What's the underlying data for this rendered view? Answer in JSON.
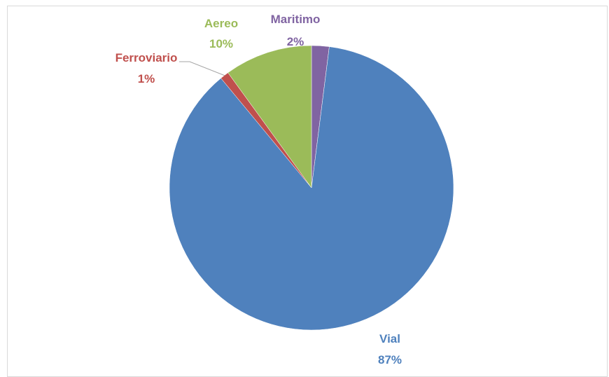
{
  "chart_data": {
    "type": "pie",
    "title": "",
    "slices": [
      {
        "label": "Maritimo",
        "value": 2,
        "value_label": "2%",
        "color": "#8064A2"
      },
      {
        "label": "Vial",
        "value": 87,
        "value_label": "87%",
        "color": "#4F81BD"
      },
      {
        "label": "Ferroviario",
        "value": 1,
        "value_label": "1%",
        "color": "#C0504D"
      },
      {
        "label": "Aereo",
        "value": 10,
        "value_label": "10%",
        "color": "#9BBB59"
      }
    ],
    "legend": "none",
    "labels": "outside"
  }
}
